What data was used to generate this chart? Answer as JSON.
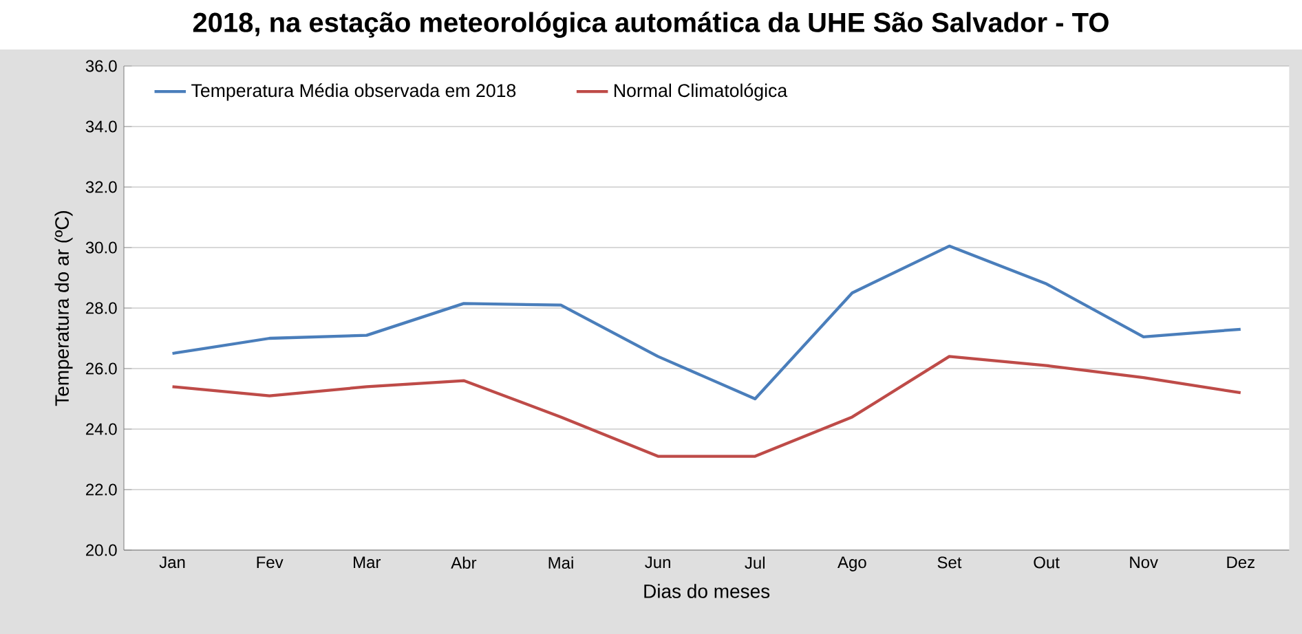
{
  "chart_data": {
    "type": "line",
    "title": "2018, na estação meteorológica automática da UHE São Salvador - TO",
    "xlabel": "Dias do meses",
    "ylabel": "Temperatura do ar (ºC)",
    "categories": [
      "Jan",
      "Fev",
      "Mar",
      "Abr",
      "Mai",
      "Jun",
      "Jul",
      "Ago",
      "Set",
      "Out",
      "Nov",
      "Dez"
    ],
    "series": [
      {
        "name": "Temperatura Média observada em 2018",
        "color": "#4a7ebb",
        "values": [
          26.5,
          27.0,
          27.1,
          28.15,
          28.1,
          26.4,
          25.0,
          28.5,
          30.05,
          28.8,
          27.05,
          27.3
        ]
      },
      {
        "name": "Normal Climatológica",
        "color": "#be4b48",
        "values": [
          25.4,
          25.1,
          25.4,
          25.6,
          24.4,
          23.1,
          23.1,
          24.4,
          26.4,
          26.1,
          25.7,
          25.2
        ]
      }
    ],
    "ylim": [
      20,
      36
    ],
    "yticks": [
      {
        "value": 20,
        "label": "20.0"
      },
      {
        "value": 22,
        "label": "22.0"
      },
      {
        "value": 24,
        "label": "24.0"
      },
      {
        "value": 26,
        "label": "26.0"
      },
      {
        "value": 28,
        "label": "28.0"
      },
      {
        "value": 30,
        "label": "30.0"
      },
      {
        "value": 32,
        "label": "32.0"
      },
      {
        "value": 34,
        "label": "34.0"
      },
      {
        "value": 36,
        "label": "36.0"
      }
    ],
    "grid": "y",
    "legend": "top left",
    "marker": "none",
    "line_style": "solid"
  }
}
